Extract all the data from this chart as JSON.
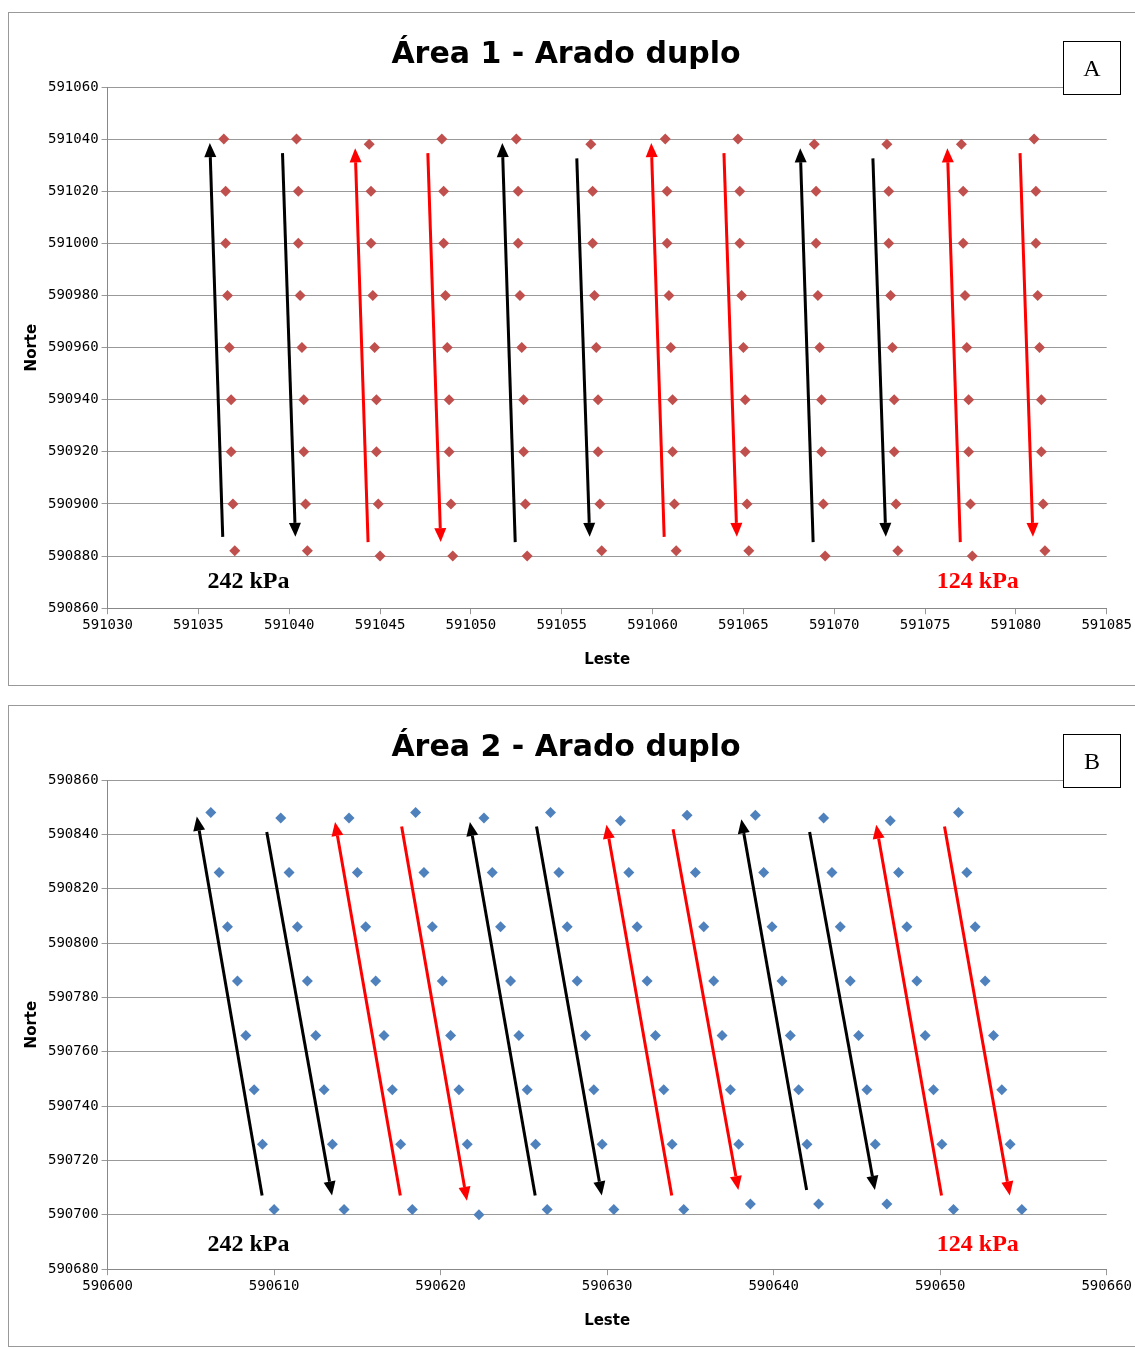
{
  "chart_data": [
    {
      "type": "scatter",
      "title": "Área 1 - Arado duplo",
      "xlabel": "Leste",
      "ylabel": "Norte",
      "xlim": [
        591030,
        591085
      ],
      "xticks": [
        591030,
        591035,
        591040,
        591045,
        591050,
        591055,
        591060,
        591065,
        591070,
        591075,
        591080,
        591085
      ],
      "ylim": [
        590860,
        591060
      ],
      "yticks": [
        590860,
        590880,
        590900,
        590920,
        590940,
        590960,
        590980,
        591000,
        591020,
        591040,
        591060
      ],
      "grid": "y",
      "legend": false,
      "marker": "diamond",
      "annotations": [
        "242 kPa",
        "124 kPa",
        "A"
      ],
      "series": [
        {
          "color": "#c0504d",
          "x": [
            591036.4,
            591036.5,
            591036.5,
            591036.6,
            591036.7,
            591036.8,
            591036.8,
            591036.9,
            591037.0
          ],
          "values": [
            591040,
            591020,
            591000,
            590980,
            590960,
            590940,
            590920,
            590900,
            590882
          ]
        },
        {
          "color": "#c0504d",
          "x": [
            591040.4,
            591040.5,
            591040.5,
            591040.6,
            591040.7,
            591040.8,
            591040.8,
            591040.9,
            591041.0
          ],
          "values": [
            591040,
            591020,
            591000,
            590980,
            590960,
            590940,
            590920,
            590900,
            590882
          ]
        },
        {
          "color": "#c0504d",
          "x": [
            591044.4,
            591044.5,
            591044.5,
            591044.6,
            591044.7,
            591044.8,
            591044.8,
            591044.9,
            591045.0
          ],
          "values": [
            591038,
            591020,
            591000,
            590980,
            590960,
            590940,
            590920,
            590900,
            590880
          ]
        },
        {
          "color": "#c0504d",
          "x": [
            591048.4,
            591048.5,
            591048.5,
            591048.6,
            591048.7,
            591048.8,
            591048.8,
            591048.9,
            591049.0
          ],
          "values": [
            591040,
            591020,
            591000,
            590980,
            590960,
            590940,
            590920,
            590900,
            590880
          ]
        },
        {
          "color": "#c0504d",
          "x": [
            591052.5,
            591052.6,
            591052.6,
            591052.7,
            591052.8,
            591052.9,
            591052.9,
            591053.0,
            591053.1
          ],
          "values": [
            591040,
            591020,
            591000,
            590980,
            590960,
            590940,
            590920,
            590900,
            590880
          ]
        },
        {
          "color": "#c0504d",
          "x": [
            591056.6,
            591056.7,
            591056.7,
            591056.8,
            591056.9,
            591057.0,
            591057.0,
            591057.1,
            591057.2
          ],
          "values": [
            591038,
            591020,
            591000,
            590980,
            590960,
            590940,
            590920,
            590900,
            590882
          ]
        },
        {
          "color": "#c0504d",
          "x": [
            591060.7,
            591060.8,
            591060.8,
            591060.9,
            591061.0,
            591061.1,
            591061.1,
            591061.2,
            591061.3
          ],
          "values": [
            591040,
            591020,
            591000,
            590980,
            590960,
            590940,
            590920,
            590900,
            590882
          ]
        },
        {
          "color": "#c0504d",
          "x": [
            591064.7,
            591064.8,
            591064.8,
            591064.9,
            591065.0,
            591065.1,
            591065.1,
            591065.2,
            591065.3
          ],
          "values": [
            591040,
            591020,
            591000,
            590980,
            590960,
            590940,
            590920,
            590900,
            590882
          ]
        },
        {
          "color": "#c0504d",
          "x": [
            591068.9,
            591069.0,
            591069.0,
            591069.1,
            591069.2,
            591069.3,
            591069.3,
            591069.4,
            591069.5
          ],
          "values": [
            591038,
            591020,
            591000,
            590980,
            590960,
            590940,
            590920,
            590900,
            590880
          ]
        },
        {
          "color": "#c0504d",
          "x": [
            591072.9,
            591073.0,
            591073.0,
            591073.1,
            591073.2,
            591073.3,
            591073.3,
            591073.4,
            591073.5
          ],
          "values": [
            591038,
            591020,
            591000,
            590980,
            590960,
            590940,
            590920,
            590900,
            590882
          ]
        },
        {
          "color": "#c0504d",
          "x": [
            591077.0,
            591077.1,
            591077.1,
            591077.2,
            591077.3,
            591077.4,
            591077.4,
            591077.5,
            591077.6
          ],
          "values": [
            591038,
            591020,
            591000,
            590980,
            590960,
            590940,
            590920,
            590900,
            590880
          ]
        },
        {
          "color": "#c0504d",
          "x": [
            591081.0,
            591081.1,
            591081.1,
            591081.2,
            591081.3,
            591081.4,
            591081.4,
            591081.5,
            591081.6
          ],
          "values": [
            591040,
            591020,
            591000,
            590980,
            590960,
            590940,
            590920,
            590900,
            590882
          ]
        }
      ]
    },
    {
      "type": "scatter",
      "title": "Área 2 - Arado duplo",
      "xlabel": "Leste",
      "ylabel": "Norte",
      "xlim": [
        590600,
        590660
      ],
      "xticks": [
        590600,
        590610,
        590620,
        590630,
        590640,
        590650,
        590660
      ],
      "ylim": [
        590680,
        590860
      ],
      "yticks": [
        590680,
        590700,
        590720,
        590740,
        590760,
        590780,
        590800,
        590820,
        590840,
        590860
      ],
      "grid": "y",
      "legend": false,
      "marker": "diamond",
      "annotations": [
        "242 kPa",
        "124 kPa",
        "B"
      ],
      "series": [
        {
          "color": "#4f81bd",
          "x": [
            590606.2,
            590606.7,
            590607.2,
            590607.8,
            590608.3,
            590608.8,
            590609.3,
            590610.0
          ],
          "values": [
            590848,
            590826,
            590806,
            590786,
            590766,
            590746,
            590726,
            590702
          ]
        },
        {
          "color": "#4f81bd",
          "x": [
            590610.4,
            590610.9,
            590611.4,
            590612.0,
            590612.5,
            590613.0,
            590613.5,
            590614.2
          ],
          "values": [
            590846,
            590826,
            590806,
            590786,
            590766,
            590746,
            590726,
            590702
          ]
        },
        {
          "color": "#4f81bd",
          "x": [
            590614.5,
            590615.0,
            590615.5,
            590616.1,
            590616.6,
            590617.1,
            590617.6,
            590618.3
          ],
          "values": [
            590846,
            590826,
            590806,
            590786,
            590766,
            590746,
            590726,
            590702
          ]
        },
        {
          "color": "#4f81bd",
          "x": [
            590618.5,
            590619.0,
            590619.5,
            590620.1,
            590620.6,
            590621.1,
            590621.6,
            590622.3
          ],
          "values": [
            590848,
            590826,
            590806,
            590786,
            590766,
            590746,
            590726,
            590700
          ]
        },
        {
          "color": "#4f81bd",
          "x": [
            590622.6,
            590623.1,
            590623.6,
            590624.2,
            590624.7,
            590625.2,
            590625.7,
            590626.4
          ],
          "values": [
            590846,
            590826,
            590806,
            590786,
            590766,
            590746,
            590726,
            590702
          ]
        },
        {
          "color": "#4f81bd",
          "x": [
            590626.6,
            590627.1,
            590627.6,
            590628.2,
            590628.7,
            590629.2,
            590629.7,
            590630.4
          ],
          "values": [
            590848,
            590826,
            590806,
            590786,
            590766,
            590746,
            590726,
            590702
          ]
        },
        {
          "color": "#4f81bd",
          "x": [
            590630.8,
            590631.3,
            590631.8,
            590632.4,
            590632.9,
            590633.4,
            590633.9,
            590634.6
          ],
          "values": [
            590845,
            590826,
            590806,
            590786,
            590766,
            590746,
            590726,
            590702
          ]
        },
        {
          "color": "#4f81bd",
          "x": [
            590634.8,
            590635.3,
            590635.8,
            590636.4,
            590636.9,
            590637.4,
            590637.9,
            590638.6
          ],
          "values": [
            590847,
            590826,
            590806,
            590786,
            590766,
            590746,
            590726,
            590704
          ]
        },
        {
          "color": "#4f81bd",
          "x": [
            590638.9,
            590639.4,
            590639.9,
            590640.5,
            590641.0,
            590641.5,
            590642.0,
            590642.7
          ],
          "values": [
            590847,
            590826,
            590806,
            590786,
            590766,
            590746,
            590726,
            590704
          ]
        },
        {
          "color": "#4f81bd",
          "x": [
            590643.0,
            590643.5,
            590644.0,
            590644.6,
            590645.1,
            590645.6,
            590646.1,
            590646.8
          ],
          "values": [
            590846,
            590826,
            590806,
            590786,
            590766,
            590746,
            590726,
            590704
          ]
        },
        {
          "color": "#4f81bd",
          "x": [
            590647.0,
            590647.5,
            590648.0,
            590648.6,
            590649.1,
            590649.6,
            590650.1,
            590650.8
          ],
          "values": [
            590845,
            590826,
            590806,
            590786,
            590766,
            590746,
            590726,
            590702
          ]
        },
        {
          "color": "#4f81bd",
          "x": [
            590651.1,
            590651.6,
            590652.1,
            590652.7,
            590653.2,
            590653.7,
            590654.2,
            590654.9
          ],
          "values": [
            590848,
            590826,
            590806,
            590786,
            590766,
            590746,
            590726,
            590702
          ]
        }
      ]
    }
  ]
}
